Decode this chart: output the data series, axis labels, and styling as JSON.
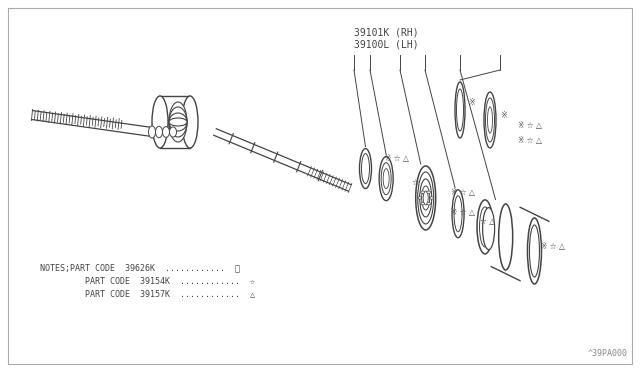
{
  "bg_color": "#ffffff",
  "line_color": "#444444",
  "title_label1": "39101K (RH)",
  "title_label2": "39100L (LH)",
  "watermark": "^39PA000",
  "notes_line1": "NOTES;PART CODE  39626K  ............  ※",
  "notes_line2": "         PART CODE  39154K  ............  ☆",
  "notes_line3": "         PART CODE  39157K  ............  △",
  "fig_width": 6.4,
  "fig_height": 3.72,
  "dpi": 100
}
